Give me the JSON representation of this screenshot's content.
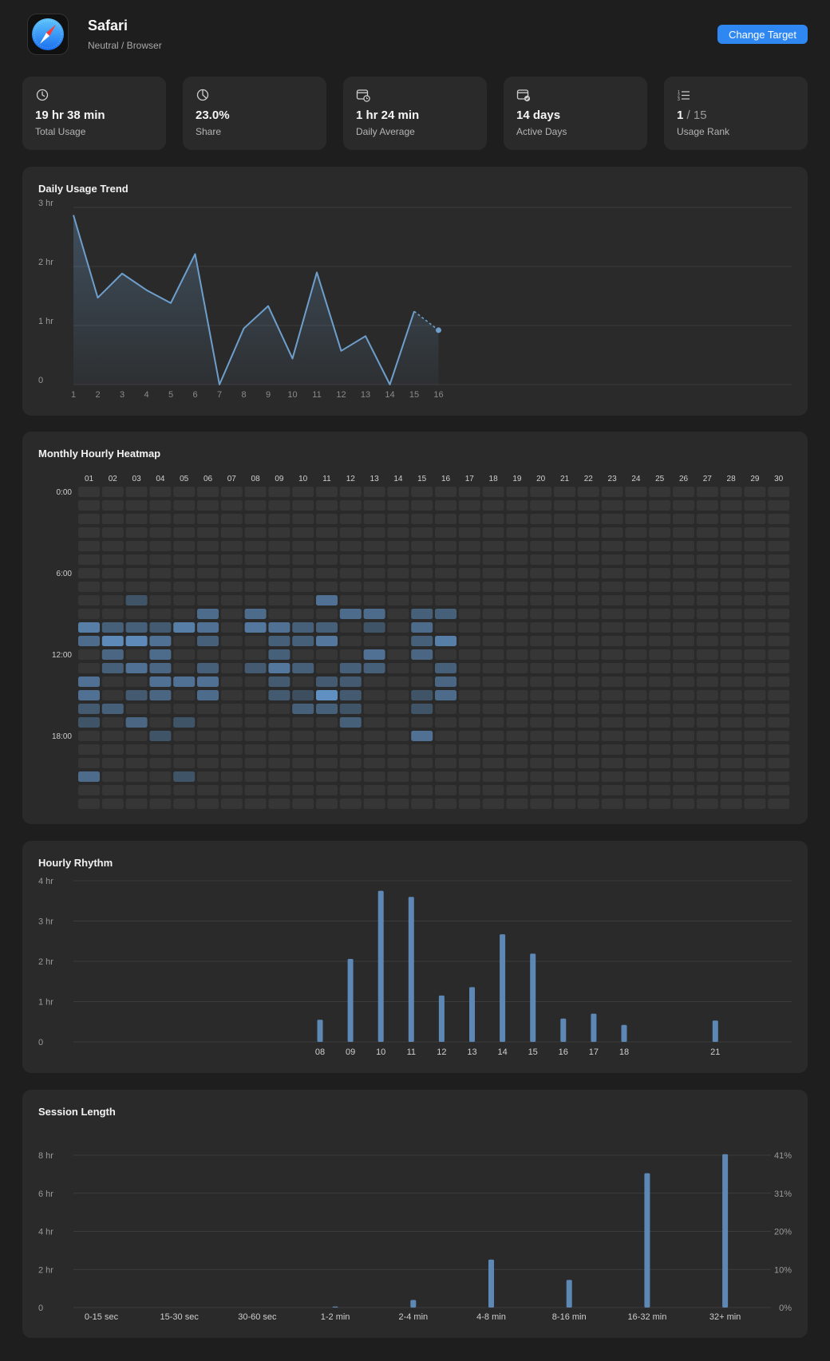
{
  "app": {
    "name": "Safari",
    "category": "Neutral / Browser",
    "icon": "safari-compass-icon",
    "change_target_label": "Change Target",
    "accent": "#2f87f2"
  },
  "stats": [
    {
      "icon": "clock-icon",
      "value": "19 hr 38 min",
      "label": "Total Usage"
    },
    {
      "icon": "pie-icon",
      "value": "23.0%",
      "label": "Share"
    },
    {
      "icon": "calendar-clock-icon",
      "value": "1 hr 24 min",
      "label": "Daily Average"
    },
    {
      "icon": "calendar-check-icon",
      "value": "14 days",
      "label": "Active Days"
    },
    {
      "icon": "ranked-list-icon",
      "value_main": "1",
      "value_sep": " / ",
      "value_total": "15",
      "label": "Usage Rank"
    }
  ],
  "trend": {
    "title": "Daily Usage Trend",
    "chart_data": {
      "type": "line",
      "x": [
        1,
        2,
        3,
        4,
        5,
        6,
        7,
        8,
        9,
        10,
        11,
        12,
        13,
        14,
        15,
        16
      ],
      "y_hours": [
        2.87,
        1.47,
        1.88,
        1.6,
        1.38,
        2.21,
        0,
        0.95,
        1.33,
        0.44,
        1.9,
        0.57,
        0.82,
        0,
        1.24,
        0.92
      ],
      "projected_last_segment": true,
      "yticks": [
        "0",
        "1 hr",
        "2 hr",
        "3 hr"
      ],
      "ylim": [
        0,
        3
      ],
      "line_color": "#6e9fcc"
    }
  },
  "heatmap": {
    "title": "Monthly Hourly Heatmap",
    "chart_data": {
      "type": "heatmap",
      "days": [
        "01",
        "02",
        "03",
        "04",
        "05",
        "06",
        "07",
        "08",
        "09",
        "10",
        "11",
        "12",
        "13",
        "14",
        "15",
        "16",
        "17",
        "18",
        "19",
        "20",
        "21",
        "22",
        "23",
        "24",
        "25",
        "26",
        "27",
        "28",
        "29",
        "30"
      ],
      "hour_labels": [
        {
          "hour": 0,
          "label": "0:00"
        },
        {
          "hour": 6,
          "label": "6:00"
        },
        {
          "hour": 12,
          "label": "12:00"
        },
        {
          "hour": 18,
          "label": "18:00"
        }
      ],
      "cells": [
        [
          8,
          3,
          0.35
        ],
        [
          8,
          11,
          0.6
        ],
        [
          9,
          6,
          0.55
        ],
        [
          9,
          8,
          0.55
        ],
        [
          9,
          12,
          0.55
        ],
        [
          9,
          13,
          0.55
        ],
        [
          9,
          15,
          0.45
        ],
        [
          9,
          16,
          0.45
        ],
        [
          10,
          1,
          0.7
        ],
        [
          10,
          2,
          0.45
        ],
        [
          10,
          3,
          0.45
        ],
        [
          10,
          4,
          0.4
        ],
        [
          10,
          5,
          0.7
        ],
        [
          10,
          6,
          0.6
        ],
        [
          10,
          8,
          0.65
        ],
        [
          10,
          9,
          0.6
        ],
        [
          10,
          10,
          0.45
        ],
        [
          10,
          11,
          0.45
        ],
        [
          10,
          13,
          0.35
        ],
        [
          10,
          15,
          0.55
        ],
        [
          11,
          1,
          0.55
        ],
        [
          11,
          2,
          0.8
        ],
        [
          11,
          3,
          0.8
        ],
        [
          11,
          4,
          0.6
        ],
        [
          11,
          6,
          0.45
        ],
        [
          11,
          9,
          0.45
        ],
        [
          11,
          10,
          0.45
        ],
        [
          11,
          11,
          0.65
        ],
        [
          11,
          15,
          0.45
        ],
        [
          11,
          16,
          0.7
        ],
        [
          12,
          2,
          0.5
        ],
        [
          12,
          4,
          0.55
        ],
        [
          12,
          9,
          0.45
        ],
        [
          12,
          13,
          0.6
        ],
        [
          12,
          15,
          0.5
        ],
        [
          13,
          2,
          0.45
        ],
        [
          13,
          3,
          0.6
        ],
        [
          13,
          4,
          0.5
        ],
        [
          13,
          6,
          0.45
        ],
        [
          13,
          8,
          0.4
        ],
        [
          13,
          9,
          0.65
        ],
        [
          13,
          10,
          0.45
        ],
        [
          13,
          12,
          0.45
        ],
        [
          13,
          13,
          0.45
        ],
        [
          13,
          16,
          0.45
        ],
        [
          14,
          1,
          0.6
        ],
        [
          14,
          4,
          0.6
        ],
        [
          14,
          5,
          0.6
        ],
        [
          14,
          6,
          0.6
        ],
        [
          14,
          9,
          0.4
        ],
        [
          14,
          11,
          0.4
        ],
        [
          14,
          12,
          0.4
        ],
        [
          14,
          16,
          0.5
        ],
        [
          15,
          1,
          0.6
        ],
        [
          15,
          3,
          0.4
        ],
        [
          15,
          4,
          0.5
        ],
        [
          15,
          6,
          0.55
        ],
        [
          15,
          9,
          0.4
        ],
        [
          15,
          10,
          0.3
        ],
        [
          15,
          11,
          0.85
        ],
        [
          15,
          12,
          0.4
        ],
        [
          15,
          15,
          0.35
        ],
        [
          15,
          16,
          0.55
        ],
        [
          16,
          1,
          0.4
        ],
        [
          16,
          2,
          0.45
        ],
        [
          16,
          10,
          0.45
        ],
        [
          16,
          11,
          0.45
        ],
        [
          16,
          12,
          0.35
        ],
        [
          16,
          15,
          0.35
        ],
        [
          17,
          1,
          0.35
        ],
        [
          17,
          3,
          0.5
        ],
        [
          17,
          5,
          0.35
        ],
        [
          17,
          12,
          0.45
        ],
        [
          18,
          4,
          0.35
        ],
        [
          18,
          15,
          0.6
        ],
        [
          21,
          1,
          0.55
        ],
        [
          21,
          5,
          0.35
        ]
      ]
    }
  },
  "rhythm": {
    "title": "Hourly Rhythm",
    "chart_data": {
      "type": "bar",
      "categories": [
        "08",
        "09",
        "10",
        "11",
        "12",
        "13",
        "14",
        "15",
        "16",
        "17",
        "18",
        "21"
      ],
      "hours": [
        8,
        9,
        10,
        11,
        12,
        13,
        14,
        15,
        16,
        17,
        18,
        21
      ],
      "values_hours": [
        0.55,
        2.06,
        3.75,
        3.6,
        1.15,
        1.36,
        2.67,
        2.19,
        0.58,
        0.7,
        0.42,
        0.53
      ],
      "yticks": [
        "0",
        "1 hr",
        "2 hr",
        "3 hr",
        "4 hr"
      ],
      "ylim": [
        0,
        4
      ]
    }
  },
  "session": {
    "title": "Session Length",
    "chart_data": {
      "type": "bar",
      "categories": [
        "0-15 sec",
        "15-30 sec",
        "30-60 sec",
        "1-2 min",
        "2-4 min",
        "4-8 min",
        "8-16 min",
        "16-32 min",
        "32+ min"
      ],
      "values_hours": [
        0,
        0,
        0,
        0.05,
        0.4,
        2.52,
        1.45,
        7.05,
        8.05
      ],
      "yticks_left": [
        "0",
        "2 hr",
        "4 hr",
        "6 hr",
        "8 hr"
      ],
      "yticks_right": [
        "0%",
        "10%",
        "20%",
        "31%",
        "41%"
      ],
      "ylim": [
        0,
        8
      ]
    }
  }
}
